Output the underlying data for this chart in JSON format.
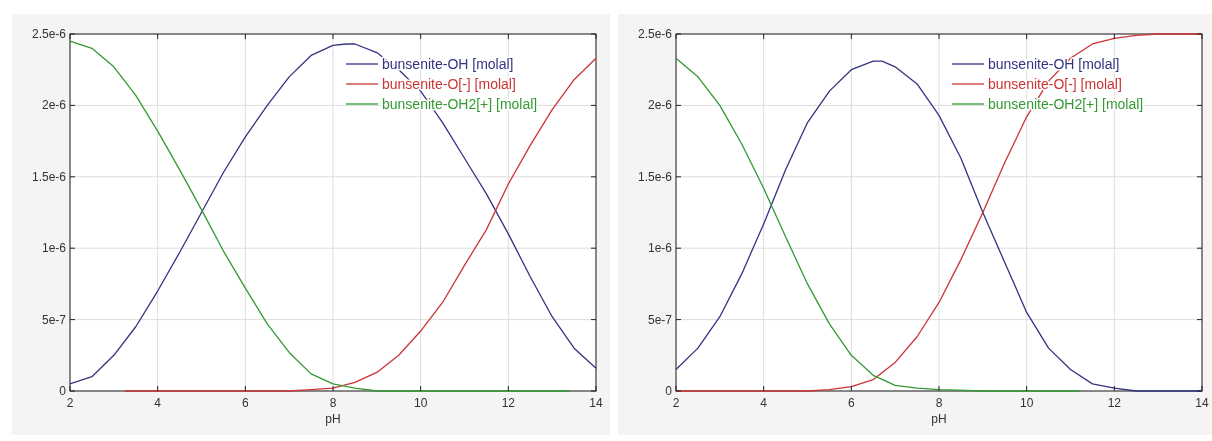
{
  "chart_data": [
    {
      "type": "line",
      "xlabel": "pH",
      "xlim": [
        2,
        14
      ],
      "xticks": [
        2,
        4,
        6,
        8,
        10,
        12,
        14
      ],
      "ylim": [
        0,
        2.5e-06
      ],
      "yticks": [
        {
          "value": 0,
          "label": "0"
        },
        {
          "value": 5e-07,
          "label": "5e-7"
        },
        {
          "value": 1e-06,
          "label": "1e-6"
        },
        {
          "value": 1.5e-06,
          "label": "1.5e-6"
        },
        {
          "value": 2e-06,
          "label": "2e-6"
        },
        {
          "value": 2.5e-06,
          "label": "2.5e-6"
        }
      ],
      "grid": true,
      "legend": "top right",
      "series": [
        {
          "name": "bunsenite-OH [molal]",
          "color": "#333380",
          "x": [
            2,
            2.5,
            3,
            3.5,
            4,
            4.5,
            5,
            5.5,
            6,
            6.5,
            7,
            7.5,
            8,
            8.3,
            8.5,
            9,
            9.5,
            10,
            10.5,
            11,
            11.5,
            12,
            12.5,
            13,
            13.5,
            14
          ],
          "values": [
            5e-08,
            1e-07,
            2.5e-07,
            4.5e-07,
            7e-07,
            9.7e-07,
            1.25e-06,
            1.53e-06,
            1.78e-06,
            2e-06,
            2.2e-06,
            2.35e-06,
            2.42e-06,
            2.43e-06,
            2.43e-06,
            2.37e-06,
            2.25e-06,
            2.1e-06,
            1.88e-06,
            1.63e-06,
            1.38e-06,
            1.1e-06,
            8e-07,
            5.2e-07,
            3e-07,
            1.6e-07
          ]
        },
        {
          "name": "bunsenite-O[-] [molal]",
          "color": "#cc3333",
          "x": [
            3.25,
            4,
            5,
            6,
            7,
            7.5,
            8,
            8.5,
            9,
            9.5,
            10,
            10.5,
            11,
            11.5,
            12,
            12.5,
            13,
            13.5,
            14
          ],
          "values": [
            0,
            0,
            0,
            0,
            0,
            1e-08,
            2e-08,
            6e-08,
            1.3e-07,
            2.5e-07,
            4.2e-07,
            6.2e-07,
            8.8e-07,
            1.13e-06,
            1.45e-06,
            1.72e-06,
            1.97e-06,
            2.18e-06,
            2.33e-06
          ]
        },
        {
          "name": "bunsenite-OH2[+] [molal]",
          "color": "#339933",
          "x": [
            2,
            2.5,
            3,
            3.5,
            4,
            4.5,
            5,
            5.5,
            6,
            6.5,
            7,
            7.5,
            8,
            8.5,
            9,
            10,
            11,
            12,
            13,
            13.4
          ],
          "values": [
            2.45e-06,
            2.4e-06,
            2.27e-06,
            2.07e-06,
            1.82e-06,
            1.55e-06,
            1.27e-06,
            9.8e-07,
            7.2e-07,
            4.7e-07,
            2.7e-07,
            1.2e-07,
            5e-08,
            2e-08,
            0,
            0,
            0,
            0,
            0,
            0
          ]
        }
      ]
    },
    {
      "type": "line",
      "xlabel": "pH",
      "xlim": [
        2,
        14
      ],
      "xticks": [
        2,
        4,
        6,
        8,
        10,
        12,
        14
      ],
      "ylim": [
        0,
        2.5e-06
      ],
      "yticks": [
        {
          "value": 0,
          "label": "0"
        },
        {
          "value": 5e-07,
          "label": "5e-7"
        },
        {
          "value": 1e-06,
          "label": "1e-6"
        },
        {
          "value": 1.5e-06,
          "label": "1.5e-6"
        },
        {
          "value": 2e-06,
          "label": "2e-6"
        },
        {
          "value": 2.5e-06,
          "label": "2.5e-6"
        }
      ],
      "grid": true,
      "legend": "top right",
      "series": [
        {
          "name": "bunsenite-OH [molal]",
          "color": "#333380",
          "x": [
            2,
            2.5,
            3,
            3.5,
            4,
            4.5,
            5,
            5.5,
            6,
            6.5,
            6.7,
            7,
            7.5,
            8,
            8.5,
            9,
            9.5,
            10,
            10.5,
            11,
            11.5,
            12,
            12.5,
            13,
            14
          ],
          "values": [
            1.5e-07,
            3e-07,
            5.2e-07,
            8.2e-07,
            1.17e-06,
            1.55e-06,
            1.88e-06,
            2.1e-06,
            2.25e-06,
            2.31e-06,
            2.31e-06,
            2.27e-06,
            2.15e-06,
            1.93e-06,
            1.63e-06,
            1.25e-06,
            9e-07,
            5.5e-07,
            3e-07,
            1.5e-07,
            5e-08,
            2e-08,
            0,
            0,
            0
          ]
        },
        {
          "name": "bunsenite-O[-] [molal]",
          "color": "#cc3333",
          "x": [
            2,
            3,
            4,
            5,
            5.5,
            6,
            6.5,
            7,
            7.5,
            8,
            8.5,
            9,
            9.5,
            10,
            10.5,
            11,
            11.5,
            12,
            12.5,
            13,
            14
          ],
          "values": [
            0,
            0,
            0,
            0,
            1e-08,
            3e-08,
            8e-08,
            2e-07,
            3.8e-07,
            6.2e-07,
            9.2e-07,
            1.25e-06,
            1.6e-06,
            1.92e-06,
            2.17e-06,
            2.33e-06,
            2.43e-06,
            2.47e-06,
            2.49e-06,
            2.5e-06,
            2.5e-06
          ]
        },
        {
          "name": "bunsenite-OH2[+] [molal]",
          "color": "#339933",
          "x": [
            2,
            2.5,
            3,
            3.5,
            4,
            4.5,
            5,
            5.5,
            6,
            6.5,
            7,
            7.5,
            8,
            9,
            10,
            11.2
          ],
          "values": [
            2.33e-06,
            2.2e-06,
            2e-06,
            1.73e-06,
            1.42e-06,
            1.08e-06,
            7.5e-07,
            4.7e-07,
            2.5e-07,
            1.1e-07,
            4e-08,
            2e-08,
            1e-08,
            0,
            0,
            0
          ]
        }
      ]
    }
  ]
}
